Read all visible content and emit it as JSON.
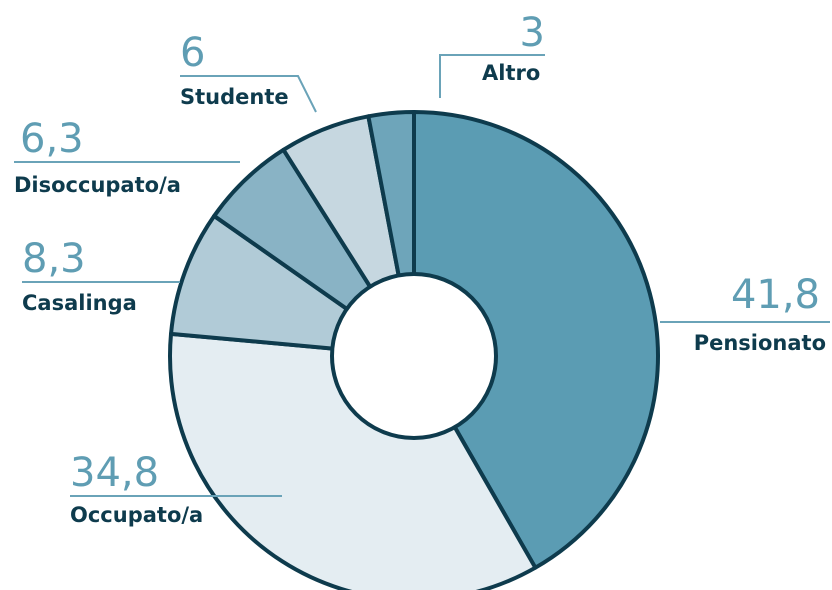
{
  "chart_data": {
    "type": "pie",
    "title": "",
    "categories": [
      "Pensionato",
      "Occupato/a",
      "Casalinga",
      "Disoccupato/a",
      "Studente",
      "Altro"
    ],
    "values": [
      41.8,
      34.8,
      8.3,
      6.3,
      6,
      3
    ],
    "value_labels": [
      "41,8",
      "34,8",
      "8,3",
      "6,3",
      "6",
      "3"
    ],
    "colors": [
      "#5b9cb3",
      "#e4edf2",
      "#b1cbd7",
      "#89b3c5",
      "#c6d7e0",
      "#6ea5ba"
    ],
    "start_angle_deg": 0,
    "direction": "clockwise",
    "donut": true,
    "grid": false,
    "legend": "none"
  }
}
